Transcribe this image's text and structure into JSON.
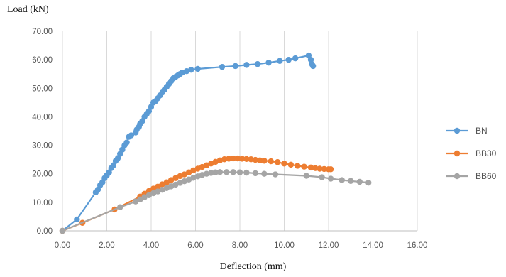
{
  "chart_data": {
    "type": "scatter",
    "ylabel": "Load (kN)",
    "xlabel": "Deflection (mm)",
    "xlim": [
      0,
      16
    ],
    "ylim": [
      0,
      70
    ],
    "xticks": [
      "0.00",
      "2.00",
      "4.00",
      "6.00",
      "8.00",
      "10.00",
      "12.00",
      "14.00",
      "16.00"
    ],
    "yticks": [
      "0.00",
      "10.00",
      "20.00",
      "30.00",
      "40.00",
      "50.00",
      "60.00",
      "70.00"
    ],
    "grid": "vertical",
    "legend_position": "right",
    "series": [
      {
        "name": "BN",
        "color": "#5b9bd5",
        "points": [
          [
            0,
            0
          ],
          [
            0.65,
            4
          ],
          [
            1.5,
            13.5
          ],
          [
            1.6,
            14.5
          ],
          [
            1.7,
            16
          ],
          [
            1.8,
            17
          ],
          [
            1.9,
            18.5
          ],
          [
            2.0,
            19.5
          ],
          [
            2.1,
            20.5
          ],
          [
            2.2,
            22
          ],
          [
            2.3,
            23
          ],
          [
            2.4,
            24.5
          ],
          [
            2.5,
            25.5
          ],
          [
            2.6,
            27
          ],
          [
            2.7,
            28.5
          ],
          [
            2.8,
            30
          ],
          [
            2.9,
            31
          ],
          [
            3.0,
            33
          ],
          [
            3.1,
            33.5
          ],
          [
            3.3,
            34.5
          ],
          [
            3.35,
            35.5
          ],
          [
            3.45,
            36.5
          ],
          [
            3.5,
            37.5
          ],
          [
            3.6,
            38.5
          ],
          [
            3.7,
            40
          ],
          [
            3.8,
            41
          ],
          [
            3.9,
            42
          ],
          [
            4.0,
            43.5
          ],
          [
            4.1,
            45
          ],
          [
            4.2,
            45.5
          ],
          [
            4.3,
            46.5
          ],
          [
            4.4,
            47.5
          ],
          [
            4.5,
            48.5
          ],
          [
            4.6,
            49.5
          ],
          [
            4.7,
            50.5
          ],
          [
            4.8,
            51.5
          ],
          [
            4.9,
            52.5
          ],
          [
            5.0,
            53.5
          ],
          [
            5.1,
            54
          ],
          [
            5.2,
            54.5
          ],
          [
            5.3,
            55
          ],
          [
            5.4,
            55.5
          ],
          [
            5.6,
            56
          ],
          [
            5.8,
            56.5
          ],
          [
            6.1,
            56.8
          ],
          [
            7.2,
            57.5
          ],
          [
            7.8,
            57.8
          ],
          [
            8.3,
            58.2
          ],
          [
            8.8,
            58.5
          ],
          [
            9.3,
            59
          ],
          [
            9.8,
            59.6
          ],
          [
            10.2,
            60
          ],
          [
            10.5,
            60.5
          ],
          [
            11.1,
            61.5
          ],
          [
            11.2,
            60
          ],
          [
            11.25,
            58.5
          ],
          [
            11.3,
            57.8
          ]
        ]
      },
      {
        "name": "BB30",
        "color": "#ed7d31",
        "points": [
          [
            0,
            0
          ],
          [
            0.9,
            2.8
          ],
          [
            2.35,
            7.5
          ],
          [
            3.5,
            12
          ],
          [
            3.7,
            13
          ],
          [
            3.9,
            14
          ],
          [
            4.1,
            14.8
          ],
          [
            4.3,
            15.5
          ],
          [
            4.5,
            16.3
          ],
          [
            4.7,
            17
          ],
          [
            4.9,
            17.8
          ],
          [
            5.1,
            18.5
          ],
          [
            5.3,
            19.2
          ],
          [
            5.5,
            19.8
          ],
          [
            5.7,
            20.5
          ],
          [
            5.9,
            21.2
          ],
          [
            6.1,
            21.8
          ],
          [
            6.3,
            22.4
          ],
          [
            6.5,
            23
          ],
          [
            6.7,
            23.6
          ],
          [
            6.9,
            24.2
          ],
          [
            7.1,
            24.7
          ],
          [
            7.3,
            25.1
          ],
          [
            7.5,
            25.3
          ],
          [
            7.7,
            25.4
          ],
          [
            7.9,
            25.4
          ],
          [
            8.1,
            25.3
          ],
          [
            8.3,
            25.2
          ],
          [
            8.5,
            25.1
          ],
          [
            8.7,
            24.9
          ],
          [
            8.9,
            24.7
          ],
          [
            9.1,
            24.6
          ],
          [
            9.4,
            24.4
          ],
          [
            9.7,
            24.1
          ],
          [
            10.0,
            23.6
          ],
          [
            10.3,
            23.2
          ],
          [
            10.6,
            22.8
          ],
          [
            10.9,
            22.5
          ],
          [
            11.2,
            22.2
          ],
          [
            11.4,
            22.0
          ],
          [
            11.6,
            21.8
          ],
          [
            11.8,
            21.7
          ],
          [
            12.0,
            21.6
          ],
          [
            12.1,
            21.6
          ]
        ]
      },
      {
        "name": "BB60",
        "color": "#a5a5a5",
        "points": [
          [
            0,
            0
          ],
          [
            2.6,
            8.3
          ],
          [
            3.3,
            10.3
          ],
          [
            3.5,
            11
          ],
          [
            3.7,
            11.8
          ],
          [
            3.9,
            12.5
          ],
          [
            4.1,
            13.2
          ],
          [
            4.3,
            13.8
          ],
          [
            4.5,
            14.4
          ],
          [
            4.7,
            15
          ],
          [
            4.9,
            15.6
          ],
          [
            5.1,
            16.2
          ],
          [
            5.3,
            16.8
          ],
          [
            5.5,
            17.4
          ],
          [
            5.7,
            18
          ],
          [
            5.9,
            18.6
          ],
          [
            6.1,
            19.1
          ],
          [
            6.3,
            19.6
          ],
          [
            6.5,
            20
          ],
          [
            6.7,
            20.3
          ],
          [
            6.9,
            20.5
          ],
          [
            7.1,
            20.6
          ],
          [
            7.4,
            20.6
          ],
          [
            7.7,
            20.6
          ],
          [
            8.0,
            20.5
          ],
          [
            8.3,
            20.4
          ],
          [
            8.7,
            20.2
          ],
          [
            9.1,
            20.0
          ],
          [
            9.6,
            19.8
          ],
          [
            11.0,
            19.3
          ],
          [
            11.7,
            18.8
          ],
          [
            12.1,
            18.3
          ],
          [
            12.6,
            17.8
          ],
          [
            13.0,
            17.5
          ],
          [
            13.4,
            17.2
          ],
          [
            13.8,
            16.9
          ]
        ]
      }
    ]
  }
}
